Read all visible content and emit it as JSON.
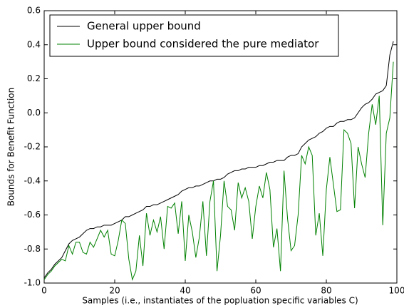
{
  "chart_data": {
    "type": "line",
    "xlabel": "Samples (i.e., instantiates of the popluation specific variables C)",
    "ylabel": "Bounds for Benefit Function",
    "x": [
      0,
      1,
      2,
      3,
      4,
      5,
      6,
      7,
      8,
      9,
      10,
      11,
      12,
      13,
      14,
      15,
      16,
      17,
      18,
      19,
      20,
      21,
      22,
      23,
      24,
      25,
      26,
      27,
      28,
      29,
      30,
      31,
      32,
      33,
      34,
      35,
      36,
      37,
      38,
      39,
      40,
      41,
      42,
      43,
      44,
      45,
      46,
      47,
      48,
      49,
      50,
      51,
      52,
      53,
      54,
      55,
      56,
      57,
      58,
      59,
      60,
      61,
      62,
      63,
      64,
      65,
      66,
      67,
      68,
      69,
      70,
      71,
      72,
      73,
      74,
      75,
      76,
      77,
      78,
      79,
      80,
      81,
      82,
      83,
      84,
      85,
      86,
      87,
      88,
      89,
      90,
      91,
      92,
      93,
      94,
      95,
      96,
      97,
      98,
      99
    ],
    "series": [
      {
        "name": "General upper bound",
        "color": "#000000",
        "values": [
          -0.97,
          -0.94,
          -0.92,
          -0.89,
          -0.87,
          -0.85,
          -0.81,
          -0.77,
          -0.75,
          -0.74,
          -0.73,
          -0.71,
          -0.69,
          -0.68,
          -0.68,
          -0.67,
          -0.67,
          -0.66,
          -0.66,
          -0.66,
          -0.65,
          -0.64,
          -0.63,
          -0.61,
          -0.61,
          -0.6,
          -0.59,
          -0.58,
          -0.57,
          -0.55,
          -0.55,
          -0.54,
          -0.54,
          -0.53,
          -0.52,
          -0.51,
          -0.5,
          -0.49,
          -0.48,
          -0.46,
          -0.45,
          -0.44,
          -0.44,
          -0.43,
          -0.43,
          -0.42,
          -0.41,
          -0.4,
          -0.4,
          -0.39,
          -0.39,
          -0.38,
          -0.36,
          -0.35,
          -0.34,
          -0.34,
          -0.33,
          -0.33,
          -0.32,
          -0.32,
          -0.32,
          -0.31,
          -0.31,
          -0.3,
          -0.29,
          -0.29,
          -0.28,
          -0.28,
          -0.28,
          -0.26,
          -0.25,
          -0.25,
          -0.24,
          -0.2,
          -0.18,
          -0.16,
          -0.15,
          -0.14,
          -0.12,
          -0.11,
          -0.09,
          -0.08,
          -0.08,
          -0.06,
          -0.05,
          -0.05,
          -0.04,
          -0.04,
          -0.03,
          0.0,
          0.03,
          0.05,
          0.06,
          0.08,
          0.11,
          0.12,
          0.13,
          0.16,
          0.34,
          0.42
        ]
      },
      {
        "name": "Upper bound considered the pure mediator",
        "color": "#008000",
        "values": [
          -0.98,
          -0.95,
          -0.93,
          -0.9,
          -0.88,
          -0.86,
          -0.87,
          -0.78,
          -0.83,
          -0.76,
          -0.76,
          -0.82,
          -0.83,
          -0.76,
          -0.79,
          -0.74,
          -0.69,
          -0.73,
          -0.69,
          -0.83,
          -0.84,
          -0.75,
          -0.63,
          -0.65,
          -0.86,
          -0.98,
          -0.93,
          -0.72,
          -0.9,
          -0.59,
          -0.72,
          -0.63,
          -0.7,
          -0.61,
          -0.8,
          -0.55,
          -0.56,
          -0.53,
          -0.71,
          -0.52,
          -0.87,
          -0.6,
          -0.7,
          -0.85,
          -0.73,
          -0.52,
          -0.84,
          -0.52,
          -0.4,
          -0.93,
          -0.72,
          -0.4,
          -0.55,
          -0.57,
          -0.69,
          -0.41,
          -0.5,
          -0.44,
          -0.52,
          -0.74,
          -0.55,
          -0.43,
          -0.5,
          -0.35,
          -0.45,
          -0.79,
          -0.68,
          -0.93,
          -0.34,
          -0.62,
          -0.81,
          -0.78,
          -0.6,
          -0.25,
          -0.3,
          -0.2,
          -0.25,
          -0.72,
          -0.59,
          -0.84,
          -0.45,
          -0.26,
          -0.42,
          -0.58,
          -0.57,
          -0.1,
          -0.12,
          -0.18,
          -0.56,
          -0.2,
          -0.3,
          -0.38,
          -0.12,
          0.05,
          -0.07,
          0.1,
          -0.66,
          -0.12,
          -0.03,
          0.3
        ]
      }
    ],
    "xlim": [
      0,
      100
    ],
    "xticks": [
      0,
      20,
      40,
      60,
      80,
      100
    ],
    "ylim": [
      -1.0,
      0.6
    ],
    "yticks": [
      {
        "value": -1.0,
        "label": "-1.0"
      },
      -0.8,
      -0.6,
      -0.4,
      -0.2,
      {
        "value": 0.0,
        "label": "0.0"
      },
      0.2,
      0.4,
      0.6
    ],
    "legend": "upper left"
  }
}
